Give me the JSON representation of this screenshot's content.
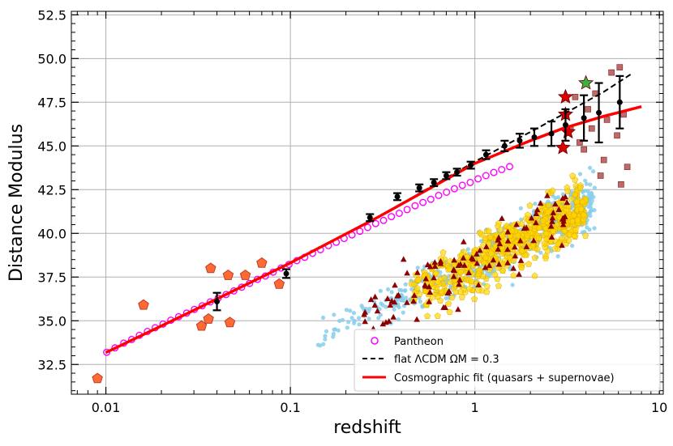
{
  "chart_data": {
    "type": "scatter",
    "xlabel": "redshift",
    "ylabel": "Distance Modulus",
    "xscale": "log",
    "xlim": [
      0.0065,
      10.5
    ],
    "ylim": [
      30.8,
      52.7
    ],
    "xticks": [
      0.01,
      0.1,
      1,
      10
    ],
    "xtick_labels": [
      "0.01",
      "0.1",
      "1",
      "10"
    ],
    "yticks": [
      32.5,
      35.0,
      37.5,
      40.0,
      42.5,
      45.0,
      47.5,
      50.0,
      52.5
    ],
    "ytick_labels": [
      "32.5",
      "35.0",
      "37.5",
      "40.0",
      "42.5",
      "45.0",
      "47.5",
      "50.0",
      "52.5"
    ],
    "grid": true,
    "legend_position": "lower-right",
    "colors": {
      "pantheon": "#ff00ff",
      "lcdm": "#000000",
      "cosmo": "#ff0000",
      "quasar_blue": "#87ceeb",
      "quasar_yellow": "#ffd700",
      "grb_triangle": "#8b0000",
      "pentagon_orange": "#ff6a33",
      "square_brown": "#b05050",
      "star_red": "#d80000",
      "star_green": "#3cb043"
    },
    "series": [
      {
        "name": "Pantheon",
        "marker": "circle-open",
        "color": "#ff00ff",
        "x": [
          0.0101,
          0.0112,
          0.0125,
          0.0138,
          0.0152,
          0.0168,
          0.0185,
          0.0204,
          0.0225,
          0.0248,
          0.0274,
          0.0302,
          0.0333,
          0.0368,
          0.0406,
          0.0448,
          0.0494,
          0.0545,
          0.0601,
          0.0663,
          0.0732,
          0.0807,
          0.0891,
          0.0983,
          0.1084,
          0.1196,
          0.132,
          0.1456,
          0.1607,
          0.1773,
          0.1956,
          0.2158,
          0.2381,
          0.2627,
          0.2899,
          0.3198,
          0.3529,
          0.3893,
          0.4295,
          0.474,
          0.5229,
          0.5769,
          0.6365,
          0.7023,
          0.7749,
          0.855,
          0.9433,
          1.0408,
          1.1483,
          1.267,
          1.3979,
          1.5423
        ],
        "y": [
          33.2,
          33.45,
          33.72,
          33.93,
          34.17,
          34.39,
          34.6,
          34.81,
          35.03,
          35.23,
          35.44,
          35.65,
          35.86,
          36.08,
          36.29,
          36.5,
          36.71,
          36.92,
          37.14,
          37.37,
          37.56,
          37.78,
          38.02,
          38.22,
          38.44,
          38.63,
          38.86,
          39.07,
          39.3,
          39.49,
          39.71,
          39.91,
          40.12,
          40.34,
          40.56,
          40.74,
          40.96,
          41.15,
          41.36,
          41.58,
          41.77,
          41.95,
          42.17,
          42.35,
          42.55,
          42.75,
          42.91,
          43.12,
          43.3,
          43.48,
          43.65,
          43.82
        ]
      },
      {
        "name": "flat ΛCDM ΩM = 0.3",
        "line": "dashed",
        "color": "#000000",
        "x": [
          0.01,
          0.03,
          0.1,
          0.3,
          1,
          2,
          3,
          5,
          7
        ],
        "y": [
          33.18,
          35.6,
          38.31,
          40.94,
          44.1,
          45.8,
          46.8,
          48.1,
          49.1
        ]
      },
      {
        "name": "Cosmographic fit (quasars + supernovae)",
        "line": "solid",
        "color": "#ff0000",
        "x": [
          0.01,
          0.03,
          0.1,
          0.3,
          1,
          2,
          3,
          5,
          8
        ],
        "y": [
          33.18,
          35.6,
          38.31,
          40.94,
          44.0,
          45.3,
          46.0,
          46.7,
          47.25
        ]
      },
      {
        "name": "",
        "marker": "errorbar",
        "color": "#000000",
        "x": [
          0.04,
          0.095,
          0.27,
          0.38,
          0.5,
          0.6,
          0.7,
          0.8,
          0.95,
          1.15,
          1.45,
          1.75,
          2.1,
          2.6,
          3.1,
          3.9,
          4.7,
          6.1
        ],
        "y": [
          36.1,
          37.7,
          40.9,
          42.1,
          42.6,
          42.9,
          43.3,
          43.5,
          43.9,
          44.5,
          45.0,
          45.3,
          45.5,
          45.7,
          46.2,
          46.6,
          46.9,
          47.5
        ],
        "err": [
          0.5,
          0.25,
          0.2,
          0.2,
          0.2,
          0.2,
          0.2,
          0.2,
          0.2,
          0.25,
          0.3,
          0.4,
          0.5,
          0.7,
          0.9,
          1.3,
          1.7,
          1.5
        ]
      },
      {
        "name": "",
        "marker": "pentagon",
        "color": "#ff6a33",
        "x": [
          0.009,
          0.016,
          0.033,
          0.036,
          0.037,
          0.046,
          0.047,
          0.057,
          0.07,
          0.087
        ],
        "y": [
          31.7,
          35.9,
          34.7,
          35.1,
          38.0,
          37.6,
          34.9,
          37.6,
          38.3,
          37.1
        ]
      },
      {
        "name": "",
        "marker": "star",
        "color": "#d80000",
        "x": [
          3.1,
          3.1,
          3.2,
          3.0
        ],
        "y": [
          47.8,
          46.8,
          45.8,
          44.9
        ]
      },
      {
        "name": "",
        "marker": "star",
        "color": "#3cb043",
        "x": [
          4.0
        ],
        "y": [
          48.6
        ]
      },
      {
        "name": "",
        "marker": "square",
        "color": "#b05050",
        "x": [
          3.5,
          3.7,
          3.9,
          4.3,
          4.5,
          4.8,
          5.2,
          5.5,
          5.9,
          6.1,
          6.4,
          6.7,
          5.0,
          4.1,
          3.3,
          6.2
        ],
        "y": [
          47.8,
          45.2,
          44.8,
          46.0,
          48.0,
          43.3,
          46.5,
          49.2,
          45.6,
          49.5,
          46.8,
          43.8,
          44.2,
          47.1,
          46.0,
          42.8
        ]
      }
    ]
  }
}
